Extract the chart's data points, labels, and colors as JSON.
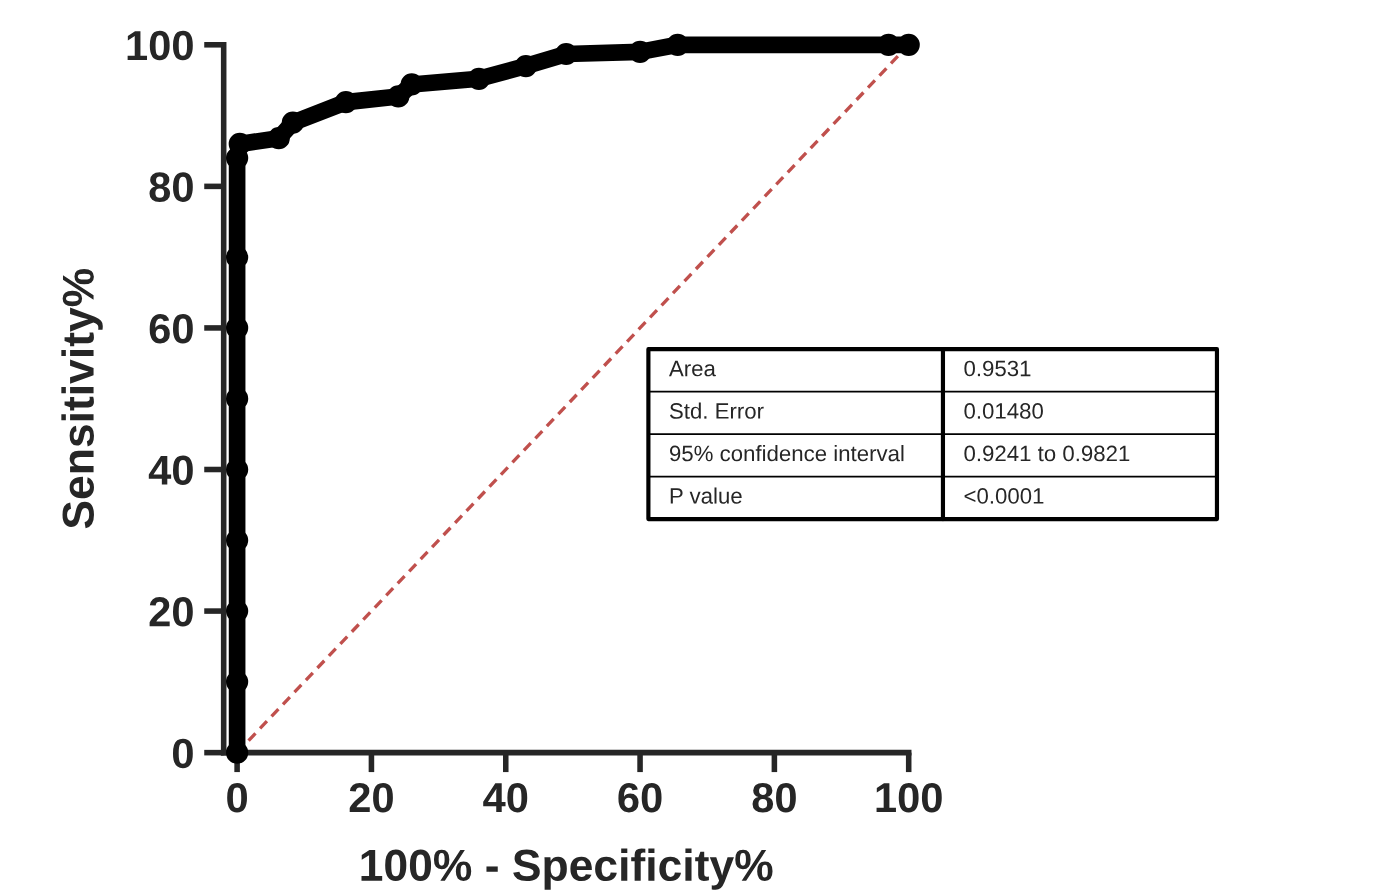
{
  "chart_data": {
    "type": "line",
    "xlabel": "100% - Specificity%",
    "ylabel": "Sensitivity%",
    "xlim": [
      -2,
      100
    ],
    "ylim": [
      0,
      100
    ],
    "xticks": [
      0,
      20,
      40,
      60,
      80,
      100
    ],
    "yticks": [
      0,
      20,
      40,
      60,
      80,
      100
    ],
    "grid": false,
    "legend": false,
    "series": [
      {
        "color": "#000000",
        "marker": "circle",
        "line_style": "solid",
        "x": [
          0,
          0,
          0,
          0,
          0,
          0,
          0,
          0,
          0,
          0.4,
          6.2,
          8.3,
          16.2,
          24,
          26,
          36,
          43,
          49,
          60,
          65.6,
          97,
          100
        ],
        "values": [
          0,
          10,
          20,
          30,
          40,
          50,
          60,
          70,
          84,
          86,
          86.8,
          89,
          91.9,
          92.7,
          94.4,
          95.2,
          97,
          98.7,
          99,
          100,
          100,
          100
        ]
      },
      {
        "color": "#c0504d",
        "marker": "none",
        "line_style": "dotted",
        "x": [
          0,
          100
        ],
        "values": [
          0,
          100
        ]
      }
    ],
    "annotations": [
      "Area",
      "0.9531",
      "Std. Error",
      "0.01480",
      "95% confidence interval",
      "0.9241 to 0.9821",
      "P value",
      "<0.0001"
    ]
  }
}
